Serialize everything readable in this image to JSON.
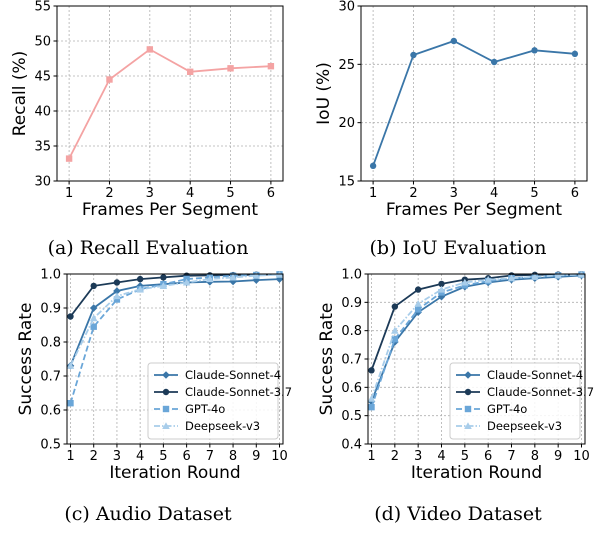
{
  "chart_data": [
    {
      "id": "a",
      "type": "line",
      "caption": "(a) Recall Evaluation",
      "xlabel": "Frames Per Segment",
      "ylabel": "Recall (%)",
      "xlim": [
        0.7,
        6.3
      ],
      "ylim": [
        30,
        55
      ],
      "xticks": [
        1,
        2,
        3,
        4,
        5,
        6
      ],
      "yticks": [
        30,
        35,
        40,
        45,
        50,
        55
      ],
      "grid": true,
      "legend": null,
      "series": [
        {
          "color": "#f4a3a3",
          "marker": "square",
          "dash": "solid",
          "x": [
            1,
            2,
            3,
            4,
            5,
            6
          ],
          "y": [
            33.2,
            44.5,
            48.8,
            45.6,
            46.1,
            46.4
          ]
        }
      ]
    },
    {
      "id": "b",
      "type": "line",
      "caption": "(b) IoU Evaluation",
      "xlabel": "Frames Per Segment",
      "ylabel": "IoU (%)",
      "xlim": [
        0.7,
        6.3
      ],
      "ylim": [
        15,
        30
      ],
      "xticks": [
        1,
        2,
        3,
        4,
        5,
        6
      ],
      "yticks": [
        15,
        20,
        25,
        30
      ],
      "grid": true,
      "legend": null,
      "series": [
        {
          "color": "#3a76a8",
          "marker": "circle",
          "dash": "solid",
          "x": [
            1,
            2,
            3,
            4,
            5,
            6
          ],
          "y": [
            16.3,
            25.8,
            27.0,
            25.2,
            26.2,
            25.9
          ]
        }
      ]
    },
    {
      "id": "c",
      "type": "line",
      "caption": "(c) Audio Dataset",
      "xlabel": "Iteration Round",
      "ylabel": "Success Rate",
      "xlim": [
        0.85,
        10.15
      ],
      "ylim": [
        0.5,
        1.0
      ],
      "xticks": [
        1,
        2,
        3,
        4,
        5,
        6,
        7,
        8,
        9,
        10
      ],
      "yticks": [
        0.5,
        0.6,
        0.7,
        0.8,
        0.9,
        1.0
      ],
      "grid": true,
      "legend": "lower-right",
      "series": [
        {
          "name": "Claude-Sonnet-4",
          "color": "#3a76a8",
          "marker": "diamond",
          "dash": "solid",
          "x": [
            1,
            2,
            3,
            4,
            5,
            6,
            7,
            8,
            9,
            10
          ],
          "y": [
            0.73,
            0.9,
            0.95,
            0.965,
            0.97,
            0.975,
            0.977,
            0.978,
            0.982,
            0.985
          ]
        },
        {
          "name": "Claude-Sonnet-3.7",
          "color": "#1c3a57",
          "marker": "circle",
          "dash": "solid",
          "x": [
            1,
            2,
            3,
            4,
            5,
            6,
            7,
            8,
            9,
            10
          ],
          "y": [
            0.875,
            0.965,
            0.975,
            0.985,
            0.99,
            0.995,
            0.996,
            0.997,
            0.998,
            0.999
          ]
        },
        {
          "name": "GPT-4o",
          "color": "#6aa6d8",
          "marker": "square",
          "dash": "dashed",
          "x": [
            1,
            2,
            3,
            4,
            5,
            6,
            7,
            8,
            9,
            10
          ],
          "y": [
            0.62,
            0.845,
            0.925,
            0.955,
            0.97,
            0.985,
            0.99,
            0.995,
            0.997,
            0.999
          ]
        },
        {
          "name": "Deepseek-v3",
          "color": "#a8cdea",
          "marker": "triangle",
          "dash": "dashdot",
          "x": [
            1,
            2,
            3,
            4,
            5,
            6,
            7,
            8,
            9,
            10
          ],
          "y": [
            0.73,
            0.87,
            0.935,
            0.955,
            0.965,
            0.975,
            0.985,
            0.99,
            0.995,
            0.998
          ]
        }
      ]
    },
    {
      "id": "d",
      "type": "line",
      "caption": "(d) Video Dataset",
      "xlabel": "Iteration Round",
      "ylabel": "Success Rate",
      "xlim": [
        0.85,
        10.15
      ],
      "ylim": [
        0.4,
        1.0
      ],
      "xticks": [
        1,
        2,
        3,
        4,
        5,
        6,
        7,
        8,
        9,
        10
      ],
      "yticks": [
        0.4,
        0.5,
        0.6,
        0.7,
        0.8,
        0.9,
        1.0
      ],
      "grid": true,
      "legend": "lower-right",
      "series": [
        {
          "name": "Claude-Sonnet-4",
          "color": "#3a76a8",
          "marker": "diamond",
          "dash": "solid",
          "x": [
            1,
            2,
            3,
            4,
            5,
            6,
            7,
            8,
            9,
            10
          ],
          "y": [
            0.55,
            0.76,
            0.865,
            0.92,
            0.955,
            0.97,
            0.98,
            0.985,
            0.99,
            0.995
          ]
        },
        {
          "name": "Claude-Sonnet-3.7",
          "color": "#1c3a57",
          "marker": "circle",
          "dash": "solid",
          "x": [
            1,
            2,
            3,
            4,
            5,
            6,
            7,
            8,
            9,
            10
          ],
          "y": [
            0.66,
            0.885,
            0.945,
            0.965,
            0.98,
            0.985,
            0.995,
            0.997,
            0.998,
            0.999
          ]
        },
        {
          "name": "GPT-4o",
          "color": "#6aa6d8",
          "marker": "square",
          "dash": "dashed",
          "x": [
            1,
            2,
            3,
            4,
            5,
            6,
            7,
            8,
            9,
            10
          ],
          "y": [
            0.53,
            0.77,
            0.875,
            0.935,
            0.96,
            0.975,
            0.985,
            0.99,
            0.995,
            0.998
          ]
        },
        {
          "name": "Deepseek-v3",
          "color": "#a8cdea",
          "marker": "triangle",
          "dash": "dashdot",
          "x": [
            1,
            2,
            3,
            4,
            5,
            6,
            7,
            8,
            9,
            10
          ],
          "y": [
            0.56,
            0.8,
            0.895,
            0.945,
            0.97,
            0.98,
            0.985,
            0.99,
            0.995,
            0.998
          ]
        }
      ]
    }
  ]
}
